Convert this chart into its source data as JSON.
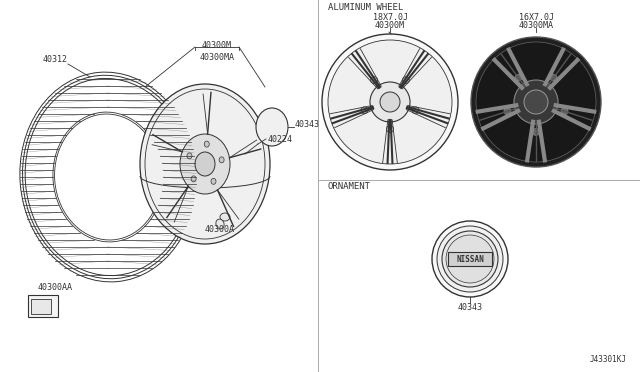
{
  "bg_color": "#ffffff",
  "line_color": "#333333",
  "title_alum": "ALUMINUM WHEEL",
  "title_orn": "ORNAMENT",
  "label_18x7": "18X7.0J",
  "label_16x7": "16X7.0J",
  "label_40300M": "40300M",
  "label_40300MA": "40300MA",
  "label_40343": "40343",
  "label_40312": "40312",
  "label_40300M_main": "40300M\n40300MA",
  "label_40224": "40224",
  "label_40343_main": "40343",
  "label_40300A": "40300A",
  "label_40300AA": "40300AA",
  "label_j43301kj": "J43301KJ",
  "font_size_small": 6,
  "font_size_title": 6.5
}
